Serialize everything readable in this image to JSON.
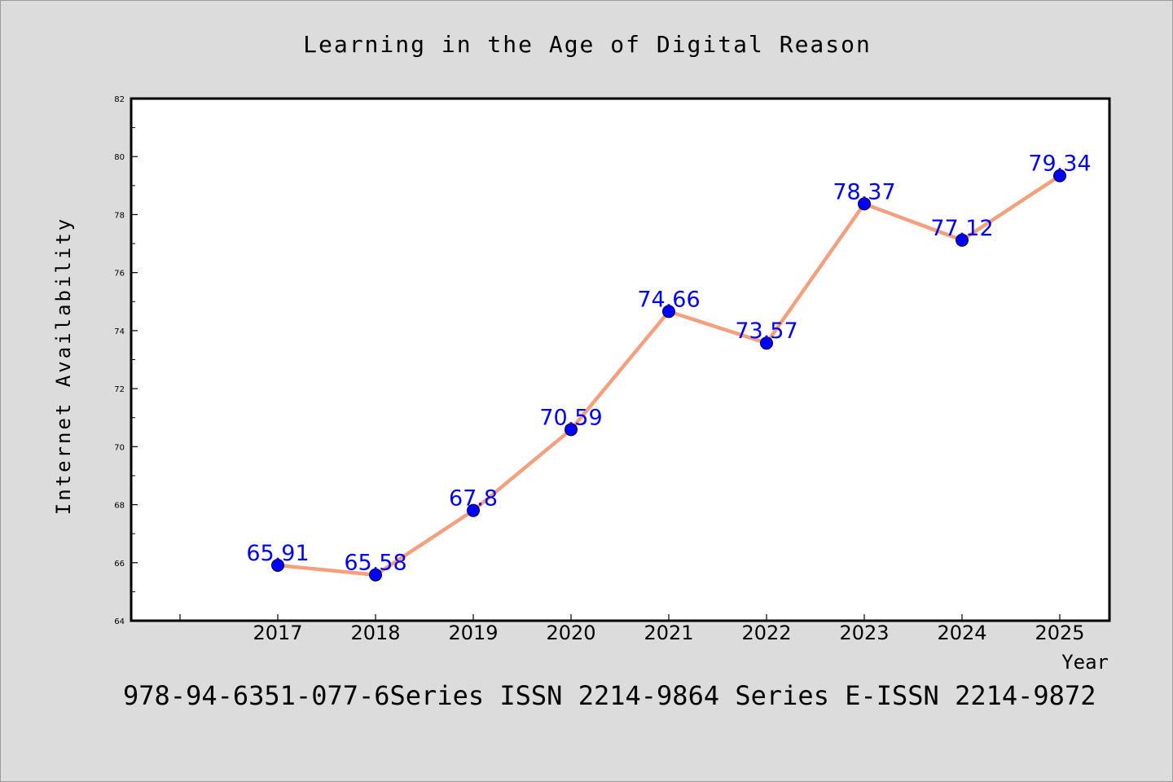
{
  "chart_data": {
    "type": "line",
    "title": "Learning in the Age of Digital Reason",
    "xlabel": "Year",
    "ylabel": "Internet Availability",
    "categories": [
      "2017",
      "2018",
      "2019",
      "2020",
      "2021",
      "2022",
      "2023",
      "2024",
      "2025"
    ],
    "series": [
      {
        "values": [
          65.91,
          65.58,
          67.8,
          70.59,
          74.66,
          73.57,
          78.37,
          77.12,
          79.34
        ],
        "labels": [
          "65.91",
          "65.58",
          "67.8",
          "70.59",
          "74.66",
          "73.57",
          "78.37",
          "77.12",
          "79.34"
        ]
      }
    ],
    "ylim": [
      64,
      82
    ],
    "yticks": [
      "64",
      "66",
      "68",
      "70",
      "72",
      "74",
      "76",
      "78",
      "80",
      "82"
    ],
    "grid": false,
    "line_color": "#f4a07f",
    "marker_color": "#0000ff",
    "label_color": "#0000ff"
  },
  "footer_text": "978-94-6351-077-6Series ISSN 2214-9864 Series E-ISSN 2214-9872"
}
